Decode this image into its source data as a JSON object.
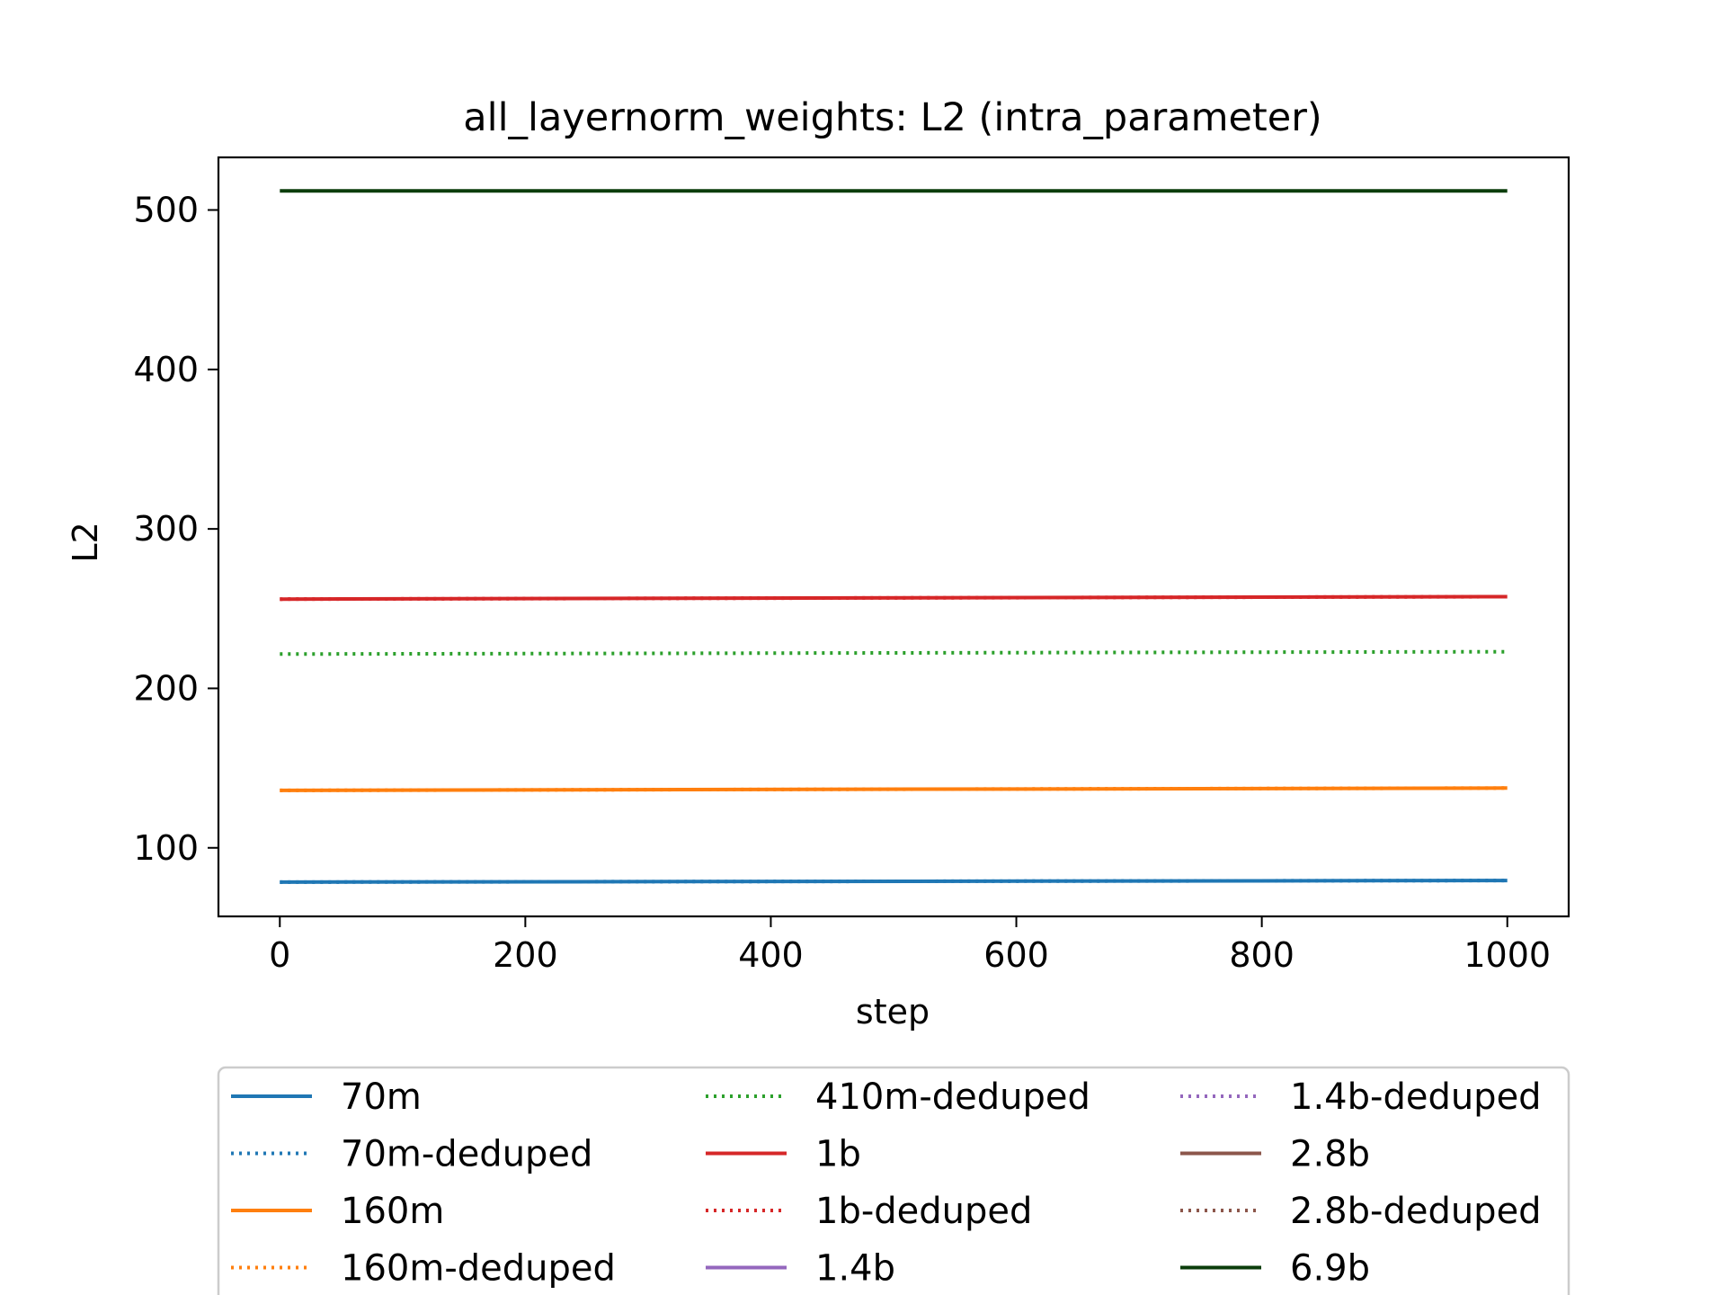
{
  "chart_data": {
    "type": "line",
    "title": "all_layernorm_weights: L2 (intra_parameter)",
    "xlabel": "step",
    "ylabel": "L2",
    "xlim": [
      -50,
      1050
    ],
    "ylim": [
      57,
      533
    ],
    "xticks": [
      0,
      200,
      400,
      600,
      800,
      1000
    ],
    "yticks": [
      100,
      200,
      300,
      400,
      500
    ],
    "grid": false,
    "legend_position": "below",
    "legend_columns": 3,
    "series": [
      {
        "name": "70m",
        "color": "#1f77b4",
        "dash": "solid",
        "x": [
          0,
          1000
        ],
        "y": [
          78.5,
          79.5
        ]
      },
      {
        "name": "70m-deduped",
        "color": "#1f77b4",
        "dash": "dotted",
        "x": [
          0,
          1000
        ],
        "y": [
          78.5,
          79.5
        ]
      },
      {
        "name": "160m",
        "color": "#ff7f0e",
        "dash": "solid",
        "x": [
          0,
          1000
        ],
        "y": [
          136,
          137.5
        ]
      },
      {
        "name": "160m-deduped",
        "color": "#ff7f0e",
        "dash": "dotted",
        "x": [
          0,
          1000
        ],
        "y": [
          136,
          137.5
        ]
      },
      {
        "name": "410m-deduped",
        "color": "#2ca02c",
        "dash": "dotted",
        "x": [
          0,
          1000
        ],
        "y": [
          221.5,
          223
        ]
      },
      {
        "name": "1b",
        "color": "#d62728",
        "dash": "solid",
        "x": [
          0,
          1000
        ],
        "y": [
          256,
          257.5
        ]
      },
      {
        "name": "1b-deduped",
        "color": "#d62728",
        "dash": "dotted",
        "x": [
          0,
          1000
        ],
        "y": [
          256,
          257.5
        ]
      },
      {
        "name": "1.4b",
        "color": "#9467bd",
        "dash": "solid",
        "x": [],
        "y": []
      },
      {
        "name": "1.4b-deduped",
        "color": "#9467bd",
        "dash": "dotted",
        "x": [],
        "y": []
      },
      {
        "name": "2.8b",
        "color": "#8c564b",
        "dash": "solid",
        "x": [],
        "y": []
      },
      {
        "name": "2.8b-deduped",
        "color": "#8c564b",
        "dash": "dotted",
        "x": [],
        "y": []
      },
      {
        "name": "6.9b",
        "color": "#0b3d0b",
        "dash": "solid",
        "x": [
          0,
          1000
        ],
        "y": [
          512,
          512
        ]
      }
    ]
  }
}
